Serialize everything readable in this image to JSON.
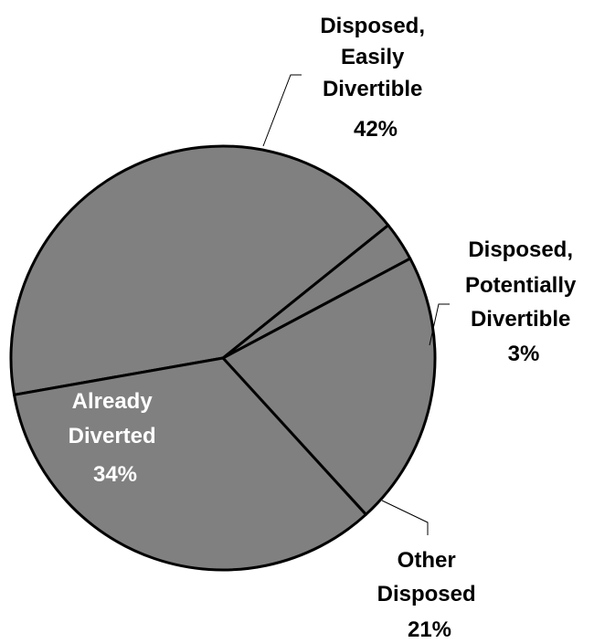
{
  "chart_data": {
    "type": "pie",
    "title": "",
    "slices": [
      {
        "name": "Disposed, Easily Divertible",
        "value": 42,
        "label_lines": [
          "Disposed,",
          "Easily",
          "Divertible",
          "42%"
        ]
      },
      {
        "name": "Disposed, Potentially Divertible",
        "value": 3,
        "label_lines": [
          "Disposed,",
          "Potentially",
          "Divertible",
          "3%"
        ]
      },
      {
        "name": "Other Disposed",
        "value": 21,
        "label_lines": [
          "Other",
          "Disposed",
          "21%"
        ]
      },
      {
        "name": "Already Diverted",
        "value": 34,
        "label_lines": [
          "Already",
          "Diverted",
          "34%"
        ]
      }
    ],
    "colors": {
      "slice_fill": "#808080",
      "edge": "#000000",
      "label_outside": "#000000",
      "label_inside": "#ffffff"
    }
  }
}
